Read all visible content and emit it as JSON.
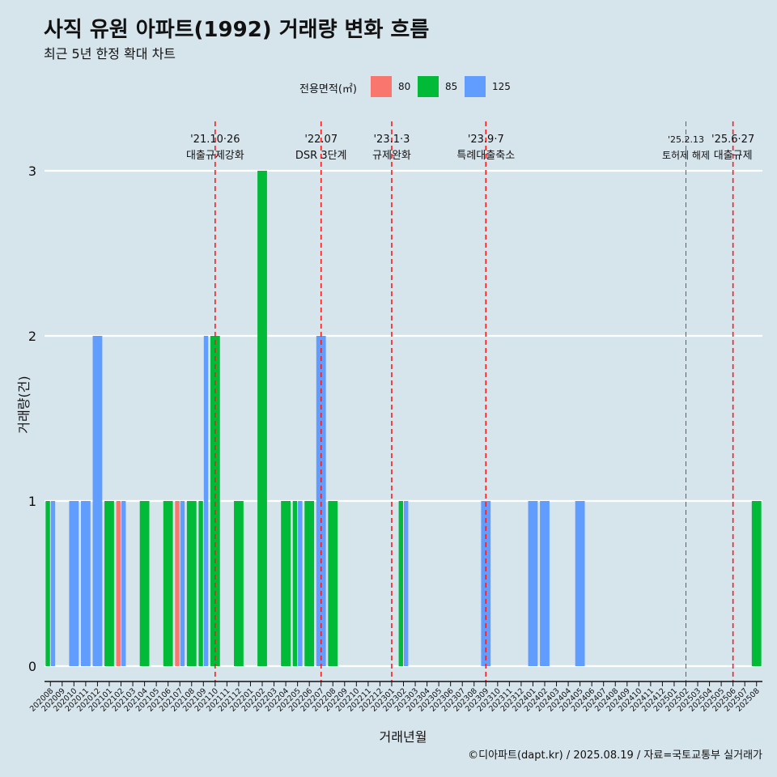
{
  "chart_data": {
    "type": "bar",
    "title": "사직 유원 아파트(1992) 거래량 변화 흐름",
    "subtitle": "최근 5년 한정 확대 차트",
    "xlabel": "거래년월",
    "ylabel": "거래량(건)",
    "ylim": [
      0,
      3
    ],
    "y_ticks": [
      0,
      1,
      2,
      3
    ],
    "legend": {
      "title": "전용면적(㎡)",
      "placement": "top",
      "entries": [
        {
          "name": "80",
          "color": "#f8766d"
        },
        {
          "name": "85",
          "color": "#00ba38"
        },
        {
          "name": "125",
          "color": "#619cff"
        }
      ]
    },
    "categories": [
      "202008",
      "202009",
      "202010",
      "202011",
      "202012",
      "202101",
      "202102",
      "202103",
      "202104",
      "202105",
      "202106",
      "202107",
      "202108",
      "202109",
      "202110",
      "202111",
      "202112",
      "202201",
      "202202",
      "202203",
      "202204",
      "202205",
      "202206",
      "202207",
      "202208",
      "202209",
      "202210",
      "202211",
      "202212",
      "202301",
      "202302",
      "202303",
      "202304",
      "202305",
      "202306",
      "202307",
      "202308",
      "202309",
      "202310",
      "202311",
      "202312",
      "202401",
      "202402",
      "202403",
      "202404",
      "202405",
      "202406",
      "202407",
      "202408",
      "202409",
      "202410",
      "202411",
      "202412",
      "202501",
      "202502",
      "202503",
      "202504",
      "202505",
      "202506",
      "202507",
      "202508"
    ],
    "series": [
      {
        "name": "80",
        "color": "#f8766d",
        "values": [
          0,
          0,
          0,
          0,
          0,
          0,
          1,
          0,
          0,
          0,
          0,
          1,
          0,
          0,
          0,
          0,
          0,
          0,
          0,
          0,
          0,
          0,
          0,
          0,
          0,
          0,
          0,
          0,
          0,
          0,
          0,
          0,
          0,
          0,
          0,
          0,
          0,
          0,
          0,
          0,
          0,
          0,
          0,
          0,
          0,
          0,
          0,
          0,
          0,
          0,
          0,
          0,
          0,
          0,
          0,
          0,
          0,
          0,
          0,
          0,
          0
        ]
      },
      {
        "name": "85",
        "color": "#00ba38",
        "values": [
          1,
          0,
          0,
          0,
          0,
          1,
          0,
          0,
          1,
          0,
          1,
          0,
          1,
          1,
          2,
          0,
          1,
          0,
          3,
          0,
          1,
          1,
          1,
          0,
          1,
          0,
          0,
          0,
          0,
          0,
          1,
          0,
          0,
          0,
          0,
          0,
          0,
          0,
          0,
          0,
          0,
          0,
          0,
          0,
          0,
          0,
          0,
          0,
          0,
          0,
          0,
          0,
          0,
          0,
          0,
          0,
          0,
          0,
          0,
          0,
          1
        ]
      },
      {
        "name": "125",
        "color": "#619cff",
        "values": [
          1,
          0,
          1,
          1,
          2,
          0,
          1,
          0,
          0,
          0,
          0,
          1,
          0,
          2,
          0,
          0,
          0,
          0,
          0,
          0,
          0,
          1,
          0,
          2,
          0,
          0,
          0,
          0,
          0,
          0,
          1,
          0,
          0,
          0,
          0,
          0,
          0,
          1,
          0,
          0,
          0,
          1,
          1,
          0,
          0,
          1,
          0,
          0,
          0,
          0,
          0,
          0,
          0,
          0,
          0,
          0,
          0,
          0,
          0,
          0,
          0
        ]
      }
    ],
    "events": [
      {
        "date": "'21.10·26",
        "label": "대출규제강화",
        "category_position": 14.5
      },
      {
        "date": "'22.07",
        "label": "DSR 3단계",
        "category_position": 23.5
      },
      {
        "date": "'23.1·3",
        "label": "규제완화",
        "category_position": 29.5
      },
      {
        "date": "'23.9·7",
        "label": "특례대출축소",
        "category_position": 37.5
      },
      {
        "date": "'25.2.13",
        "label": "토허제 해제",
        "category_position": 54.5
      },
      {
        "date": "'25.6·27",
        "label": "대출규제",
        "category_position": 58.5
      }
    ]
  },
  "caption": "©디아파트(dapt.kr) / 2025.08.19 / 자료=국토교통부 실거래가"
}
